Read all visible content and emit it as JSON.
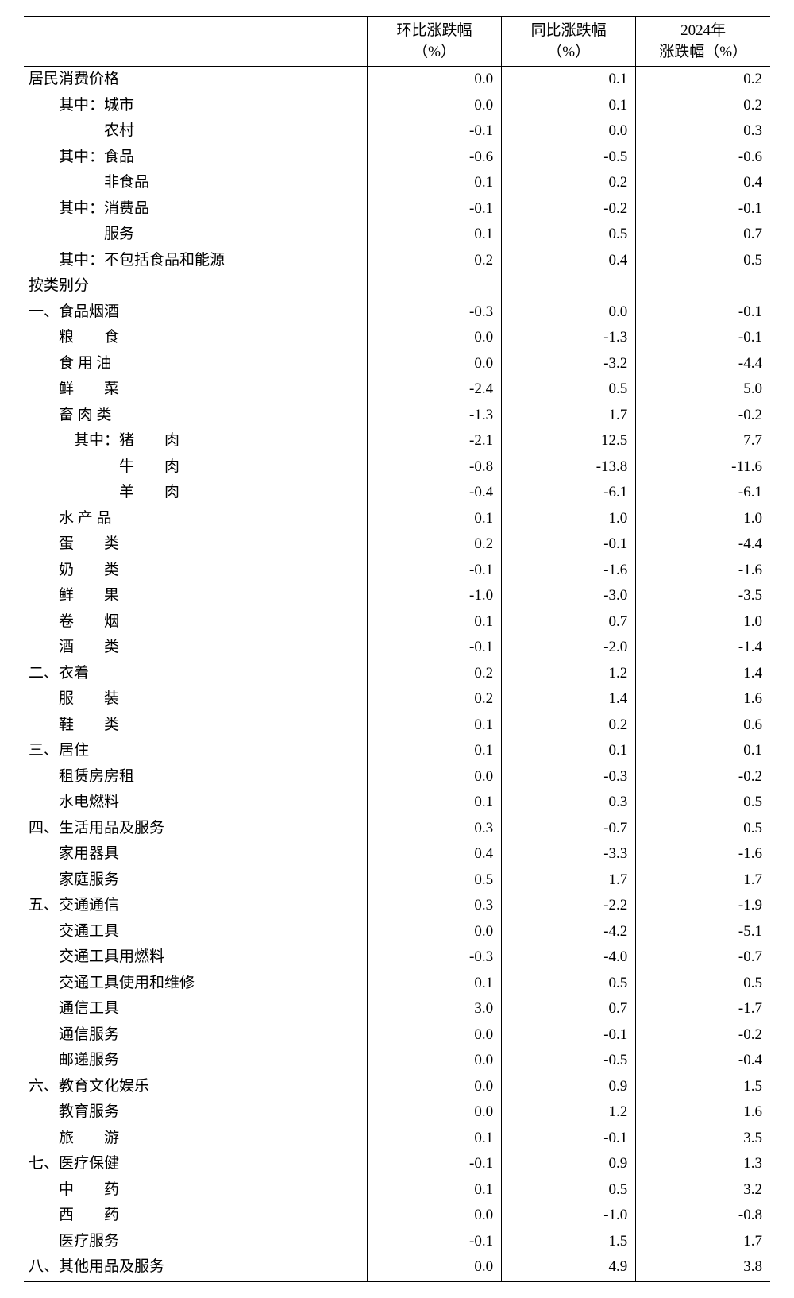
{
  "headers": {
    "mom_l1": "环比涨跌幅",
    "mom_l2": "（%）",
    "yoy_l1": "同比涨跌幅",
    "yoy_l2": "（%）",
    "year_l1": "2024年",
    "year_l2": "涨跌幅（%）"
  },
  "rows": [
    {
      "label": "居民消费价格",
      "indent": 0,
      "mom": "0.0",
      "yoy": "0.1",
      "year": "0.2"
    },
    {
      "label": "其中：城市",
      "indent": 2,
      "mom": "0.0",
      "yoy": "0.1",
      "year": "0.2"
    },
    {
      "label": "农村",
      "indent": 5,
      "mom": "-0.1",
      "yoy": "0.0",
      "year": "0.3"
    },
    {
      "label": "其中：食品",
      "indent": 2,
      "mom": "-0.6",
      "yoy": "-0.5",
      "year": "-0.6"
    },
    {
      "label": "非食品",
      "indent": 5,
      "mom": "0.1",
      "yoy": "0.2",
      "year": "0.4"
    },
    {
      "label": "其中：消费品",
      "indent": 2,
      "mom": "-0.1",
      "yoy": "-0.2",
      "year": "-0.1"
    },
    {
      "label": "服务",
      "indent": 5,
      "mom": "0.1",
      "yoy": "0.5",
      "year": "0.7"
    },
    {
      "label": "其中：不包括食品和能源",
      "indent": 2,
      "mom": "0.2",
      "yoy": "0.4",
      "year": "0.5"
    },
    {
      "label": "按类别分",
      "indent": 0,
      "mom": "",
      "yoy": "",
      "year": ""
    },
    {
      "label": "一、食品烟酒",
      "indent": 0,
      "mom": "-0.3",
      "yoy": "0.0",
      "year": "-0.1"
    },
    {
      "label": "粮　　食",
      "indent": 2,
      "mom": "0.0",
      "yoy": "-1.3",
      "year": "-0.1"
    },
    {
      "label": "食 用 油",
      "indent": 2,
      "mom": "0.0",
      "yoy": "-3.2",
      "year": "-4.4"
    },
    {
      "label": "鲜　　菜",
      "indent": 2,
      "mom": "-2.4",
      "yoy": "0.5",
      "year": "5.0"
    },
    {
      "label": "畜 肉 类",
      "indent": 2,
      "mom": "-1.3",
      "yoy": "1.7",
      "year": "-0.2"
    },
    {
      "label": "其中：猪　　肉",
      "indent": 3,
      "mom": "-2.1",
      "yoy": "12.5",
      "year": "7.7"
    },
    {
      "label": "牛　　肉",
      "indent": 6,
      "mom": "-0.8",
      "yoy": "-13.8",
      "year": "-11.6"
    },
    {
      "label": "羊　　肉",
      "indent": 6,
      "mom": "-0.4",
      "yoy": "-6.1",
      "year": "-6.1"
    },
    {
      "label": "水 产 品",
      "indent": 2,
      "mom": "0.1",
      "yoy": "1.0",
      "year": "1.0"
    },
    {
      "label": "蛋　　类",
      "indent": 2,
      "mom": "0.2",
      "yoy": "-0.1",
      "year": "-4.4"
    },
    {
      "label": "奶　　类",
      "indent": 2,
      "mom": "-0.1",
      "yoy": "-1.6",
      "year": "-1.6"
    },
    {
      "label": "鲜　　果",
      "indent": 2,
      "mom": "-1.0",
      "yoy": "-3.0",
      "year": "-3.5"
    },
    {
      "label": "卷　　烟",
      "indent": 2,
      "mom": "0.1",
      "yoy": "0.7",
      "year": "1.0"
    },
    {
      "label": "酒　　类",
      "indent": 2,
      "mom": "-0.1",
      "yoy": "-2.0",
      "year": "-1.4"
    },
    {
      "label": "二、衣着",
      "indent": 0,
      "mom": "0.2",
      "yoy": "1.2",
      "year": "1.4"
    },
    {
      "label": "服　　装",
      "indent": 2,
      "mom": "0.2",
      "yoy": "1.4",
      "year": "1.6"
    },
    {
      "label": "鞋　　类",
      "indent": 2,
      "mom": "0.1",
      "yoy": "0.2",
      "year": "0.6"
    },
    {
      "label": "三、居住",
      "indent": 0,
      "mom": "0.1",
      "yoy": "0.1",
      "year": "0.1"
    },
    {
      "label": "租赁房房租",
      "indent": 2,
      "mom": "0.0",
      "yoy": "-0.3",
      "year": "-0.2"
    },
    {
      "label": "水电燃料",
      "indent": 2,
      "mom": "0.1",
      "yoy": "0.3",
      "year": "0.5"
    },
    {
      "label": "四、生活用品及服务",
      "indent": 0,
      "mom": "0.3",
      "yoy": "-0.7",
      "year": "0.5"
    },
    {
      "label": "家用器具",
      "indent": 2,
      "mom": "0.4",
      "yoy": "-3.3",
      "year": "-1.6"
    },
    {
      "label": "家庭服务",
      "indent": 2,
      "mom": "0.5",
      "yoy": "1.7",
      "year": "1.7"
    },
    {
      "label": "五、交通通信",
      "indent": 0,
      "mom": "0.3",
      "yoy": "-2.2",
      "year": "-1.9"
    },
    {
      "label": "交通工具",
      "indent": 2,
      "mom": "0.0",
      "yoy": "-4.2",
      "year": "-5.1"
    },
    {
      "label": "交通工具用燃料",
      "indent": 2,
      "mom": "-0.3",
      "yoy": "-4.0",
      "year": "-0.7"
    },
    {
      "label": "交通工具使用和维修",
      "indent": 2,
      "mom": "0.1",
      "yoy": "0.5",
      "year": "0.5"
    },
    {
      "label": "通信工具",
      "indent": 2,
      "mom": "3.0",
      "yoy": "0.7",
      "year": "-1.7"
    },
    {
      "label": "通信服务",
      "indent": 2,
      "mom": "0.0",
      "yoy": "-0.1",
      "year": "-0.2"
    },
    {
      "label": "邮递服务",
      "indent": 2,
      "mom": "0.0",
      "yoy": "-0.5",
      "year": "-0.4"
    },
    {
      "label": "六、教育文化娱乐",
      "indent": 0,
      "mom": "0.0",
      "yoy": "0.9",
      "year": "1.5"
    },
    {
      "label": "教育服务",
      "indent": 2,
      "mom": "0.0",
      "yoy": "1.2",
      "year": "1.6"
    },
    {
      "label": "旅　　游",
      "indent": 2,
      "mom": "0.1",
      "yoy": "-0.1",
      "year": "3.5"
    },
    {
      "label": "七、医疗保健",
      "indent": 0,
      "mom": "-0.1",
      "yoy": "0.9",
      "year": "1.3"
    },
    {
      "label": "中　　药",
      "indent": 2,
      "mom": "0.1",
      "yoy": "0.5",
      "year": "3.2"
    },
    {
      "label": "西　　药",
      "indent": 2,
      "mom": "0.0",
      "yoy": "-1.0",
      "year": "-0.8"
    },
    {
      "label": "医疗服务",
      "indent": 2,
      "mom": "-0.1",
      "yoy": "1.5",
      "year": "1.7"
    },
    {
      "label": "八、其他用品及服务",
      "indent": 0,
      "mom": "0.0",
      "yoy": "4.9",
      "year": "3.8"
    }
  ]
}
